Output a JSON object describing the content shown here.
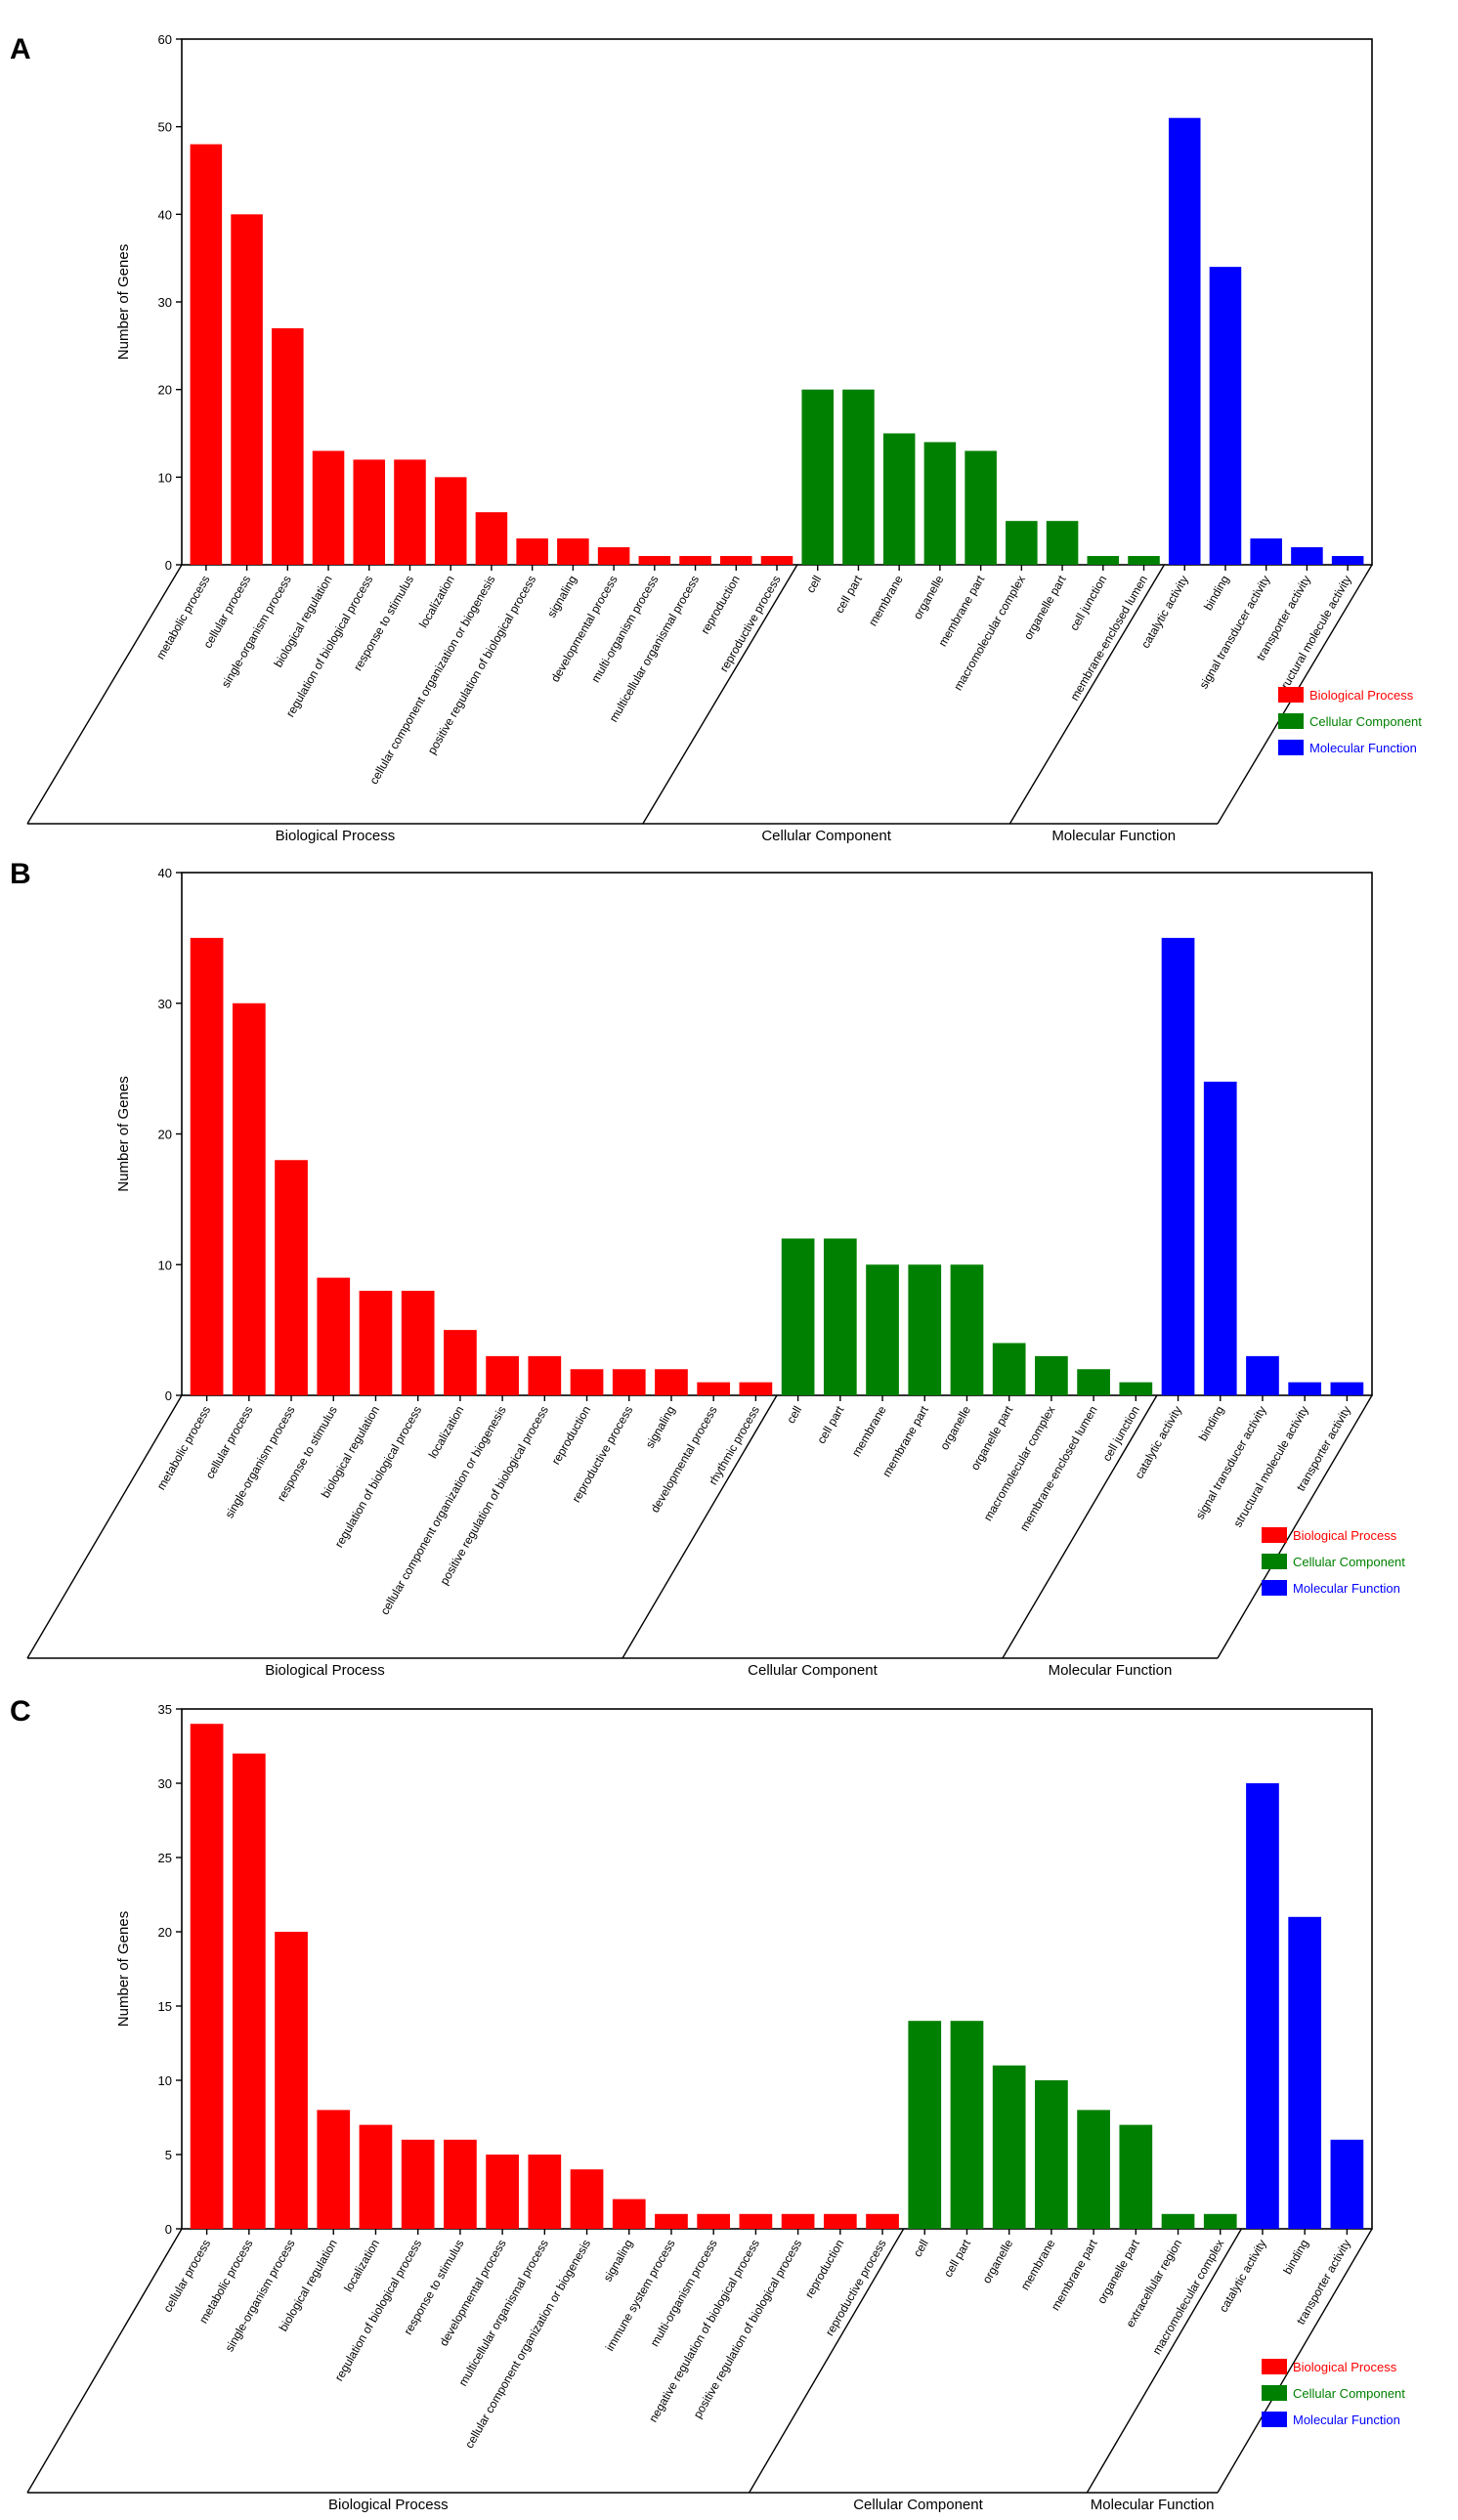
{
  "colors": {
    "bp": "#ff0000",
    "cc": "#008000",
    "mf": "#0000ff"
  },
  "legend": [
    {
      "label": "Biological Process",
      "key": "bp"
    },
    {
      "label": "Cellular Component",
      "key": "cc"
    },
    {
      "label": "Molecular Function",
      "key": "mf"
    }
  ],
  "chart_data": [
    {
      "panel": "A",
      "type": "bar",
      "ylabel": "Number of Genes",
      "ylim": [
        0,
        60
      ],
      "yticks": [
        0,
        10,
        20,
        30,
        40,
        50,
        60
      ],
      "groups": [
        {
          "name": "Biological Process",
          "key": "bp",
          "categories": [
            "metabolic process",
            "cellular process",
            "single-organism process",
            "biological regulation",
            "regulation of biological process",
            "response to stimulus",
            "localization",
            "cellular component organization or biogenesis",
            "positive regulation of biological process",
            "signaling",
            "developmental process",
            "multi-organism process",
            "multicellular organismal process",
            "reproduction",
            "reproductive process"
          ],
          "values": [
            48,
            40,
            27,
            13,
            12,
            12,
            10,
            6,
            3,
            3,
            2,
            1,
            1,
            1,
            1
          ]
        },
        {
          "name": "Cellular Component",
          "key": "cc",
          "categories": [
            "cell",
            "cell part",
            "membrane",
            "organelle",
            "membrane part",
            "macromolecular complex",
            "organelle part",
            "cell junction",
            "membrane-enclosed lumen"
          ],
          "values": [
            20,
            20,
            15,
            14,
            13,
            5,
            5,
            1,
            1
          ]
        },
        {
          "name": "Molecular Function",
          "key": "mf",
          "categories": [
            "catalytic activity",
            "binding",
            "signal transducer activity",
            "transporter activity",
            "structural molecule activity"
          ],
          "values": [
            51,
            34,
            3,
            2,
            1
          ]
        }
      ]
    },
    {
      "panel": "B",
      "type": "bar",
      "ylabel": "Number of Genes",
      "ylim": [
        0,
        40
      ],
      "yticks": [
        0,
        10,
        20,
        30,
        40
      ],
      "groups": [
        {
          "name": "Biological Process",
          "key": "bp",
          "categories": [
            "metabolic process",
            "cellular process",
            "single-organism process",
            "response to stimulus",
            "biological regulation",
            "regulation of biological process",
            "localization",
            "cellular component organization or biogenesis",
            "positive regulation of biological process",
            "reproduction",
            "reproductive process",
            "signaling",
            "developmental process",
            "rhythmic process"
          ],
          "values": [
            35,
            30,
            18,
            9,
            8,
            8,
            5,
            3,
            3,
            2,
            2,
            2,
            1,
            1
          ]
        },
        {
          "name": "Cellular Component",
          "key": "cc",
          "categories": [
            "cell",
            "cell part",
            "membrane",
            "membrane part",
            "organelle",
            "organelle part",
            "macromolecular complex",
            "membrane-enclosed lumen",
            "cell junction"
          ],
          "values": [
            12,
            12,
            10,
            10,
            10,
            4,
            3,
            2,
            1
          ]
        },
        {
          "name": "Molecular Function",
          "key": "mf",
          "categories": [
            "catalytic activity",
            "binding",
            "signal transducer activity",
            "structural molecule activity",
            "transporter activity"
          ],
          "values": [
            35,
            24,
            3,
            1,
            1
          ]
        }
      ]
    },
    {
      "panel": "C",
      "type": "bar",
      "ylabel": "Number of Genes",
      "ylim": [
        0,
        35
      ],
      "yticks": [
        0,
        5,
        10,
        15,
        20,
        25,
        30,
        35
      ],
      "groups": [
        {
          "name": "Biological Process",
          "key": "bp",
          "categories": [
            "cellular process",
            "metabolic process",
            "single-organism process",
            "biological regulation",
            "localization",
            "regulation of biological process",
            "response to stimulus",
            "developmental process",
            "multicellular organismal process",
            "cellular component organization or biogenesis",
            "signaling",
            "immune system process",
            "multi-organism process",
            "negative regulation of biological process",
            "positive regulation of biological process",
            "reproduction",
            "reproductive process"
          ],
          "values": [
            34,
            32,
            20,
            8,
            7,
            6,
            6,
            5,
            5,
            4,
            2,
            1,
            1,
            1,
            1,
            1,
            1
          ]
        },
        {
          "name": "Cellular Component",
          "key": "cc",
          "categories": [
            "cell",
            "cell part",
            "organelle",
            "membrane",
            "membrane part",
            "organelle part",
            "extracellular region",
            "macromolecular complex"
          ],
          "values": [
            14,
            14,
            11,
            10,
            8,
            7,
            1,
            1
          ]
        },
        {
          "name": "Molecular Function",
          "key": "mf",
          "categories": [
            "catalytic activity",
            "binding",
            "transporter activity"
          ],
          "values": [
            30,
            21,
            6
          ]
        }
      ]
    }
  ]
}
